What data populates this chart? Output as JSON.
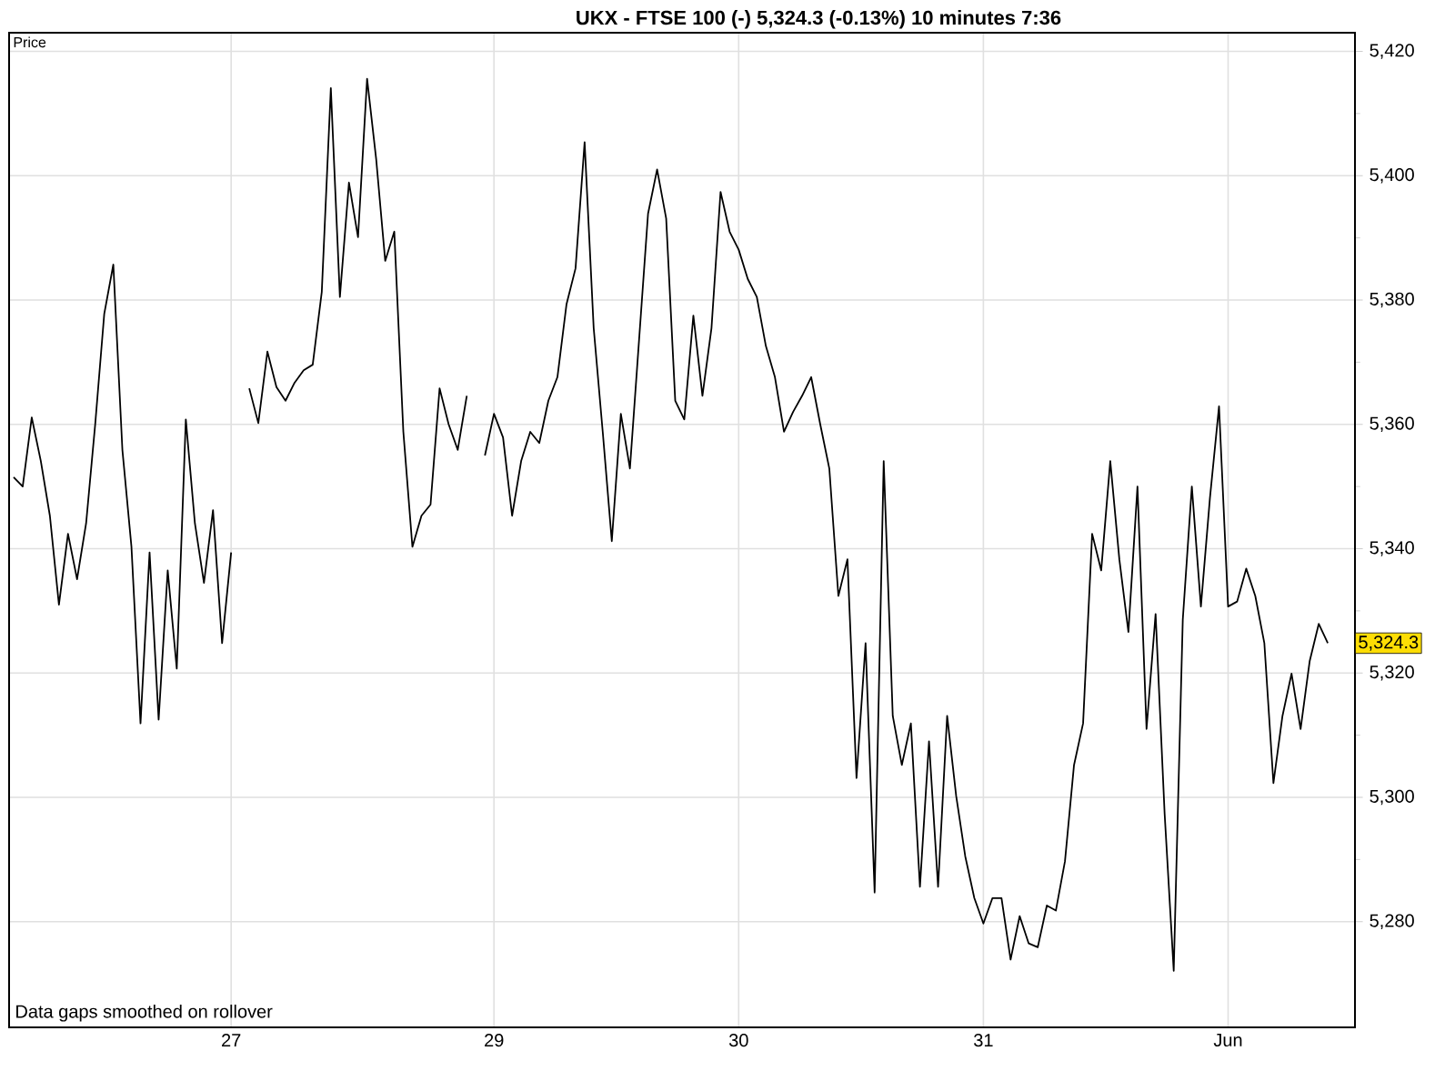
{
  "chart_data": {
    "type": "line",
    "title": "UKX - FTSE 100 (-)   5,324.3 (-0.13%)   10 minutes  7:36",
    "ylabel": "Price",
    "annotations": [
      "Data gaps smoothed on rollover",
      "5,324.3"
    ],
    "categories": [
      null,
      null,
      null,
      null,
      null,
      null,
      null,
      null,
      null,
      null,
      null,
      null,
      null,
      null,
      null,
      null,
      null,
      null,
      null,
      null,
      null,
      null,
      null,
      null,
      "27",
      null,
      null,
      null,
      null,
      null,
      null,
      null,
      null,
      null,
      null,
      null,
      null,
      null,
      null,
      null,
      null,
      null,
      null,
      null,
      null,
      null,
      null,
      null,
      null,
      null,
      null,
      null,
      null,
      "29",
      null,
      null,
      null,
      null,
      null,
      null,
      null,
      null,
      null,
      null,
      null,
      null,
      null,
      null,
      null,
      null,
      null,
      null,
      null,
      null,
      null,
      null,
      null,
      null,
      null,
      null,
      "30",
      null,
      null,
      null,
      null,
      null,
      null,
      null,
      null,
      null,
      null,
      null,
      null,
      null,
      null,
      null,
      null,
      null,
      null,
      null,
      null,
      null,
      null,
      null,
      null,
      null,
      null,
      "31",
      null,
      null,
      null,
      null,
      null,
      null,
      null,
      null,
      null,
      null,
      null,
      null,
      null,
      null,
      null,
      null,
      null,
      null,
      null,
      null,
      null,
      null,
      null,
      null,
      null,
      null,
      "Jun",
      null,
      null,
      null,
      null,
      null,
      null,
      null,
      null,
      null,
      null,
      null
    ],
    "values": [
      5351.5,
      5350.0,
      5361.1,
      5354.1,
      5345.3,
      5331.0,
      5342.4,
      5335.1,
      5344.1,
      5360.0,
      5377.8,
      5385.7,
      5355.9,
      5340.3,
      5311.9,
      5339.4,
      5312.5,
      5336.5,
      5320.7,
      5360.8,
      5344.1,
      5334.5,
      5346.2,
      5324.8,
      5339.4,
      null,
      5365.8,
      5360.2,
      5371.7,
      5366.0,
      5363.8,
      5366.7,
      5368.7,
      5369.6,
      5381.3,
      5414.1,
      5380.5,
      5398.9,
      5390.1,
      5415.6,
      5402.7,
      5386.3,
      5391.0,
      5358.8,
      5340.3,
      5345.3,
      5347.1,
      5365.8,
      5360.0,
      5355.9,
      5364.6,
      null,
      5355.0,
      5361.7,
      5357.9,
      5345.3,
      5354.1,
      5358.8,
      5357.0,
      5363.8,
      5367.6,
      5379.3,
      5385.1,
      5405.4,
      5375.5,
      5358.8,
      5341.2,
      5361.7,
      5352.9,
      5373.4,
      5393.9,
      5401.0,
      5393.1,
      5363.8,
      5360.8,
      5377.5,
      5364.6,
      5375.5,
      5397.4,
      5391.0,
      5388.1,
      5383.4,
      5380.5,
      5372.6,
      5367.6,
      5358.8,
      5362.0,
      5364.6,
      5367.6,
      5360.0,
      5352.9,
      5332.4,
      5338.3,
      5303.1,
      5324.8,
      5284.7,
      5354.1,
      5313.1,
      5305.2,
      5311.9,
      5285.6,
      5309.0,
      5285.6,
      5313.1,
      5300.2,
      5290.5,
      5283.8,
      5279.7,
      5283.8,
      5283.8,
      5273.9,
      5280.9,
      5276.5,
      5275.9,
      5282.6,
      5281.8,
      5289.7,
      5305.2,
      5311.9,
      5342.4,
      5336.5,
      5354.1,
      5338.3,
      5326.6,
      5350.0,
      5311.0,
      5329.5,
      5297.3,
      5272.1,
      5328.6,
      5350.0,
      5330.7,
      5348.2,
      5362.9,
      5330.7,
      5331.5,
      5336.8,
      5332.4,
      5324.8,
      5302.3,
      5313.1,
      5319.9,
      5311.0,
      5321.9,
      5327.9,
      5324.8
    ],
    "color": "#000000",
    "ylim": [
      5263,
      5423
    ],
    "yticks": [
      {
        "value": 5280,
        "label": "5,280"
      },
      {
        "value": 5300,
        "label": "5,300"
      },
      {
        "value": 5320,
        "label": "5,320"
      },
      {
        "value": 5340,
        "label": "5,340"
      },
      {
        "value": 5360,
        "label": "5,360"
      },
      {
        "value": 5380,
        "label": "5,380"
      },
      {
        "value": 5400,
        "label": "5,400"
      },
      {
        "value": 5420,
        "label": "5,420"
      }
    ],
    "grid": true,
    "marker": "none",
    "line_style": "solid"
  }
}
